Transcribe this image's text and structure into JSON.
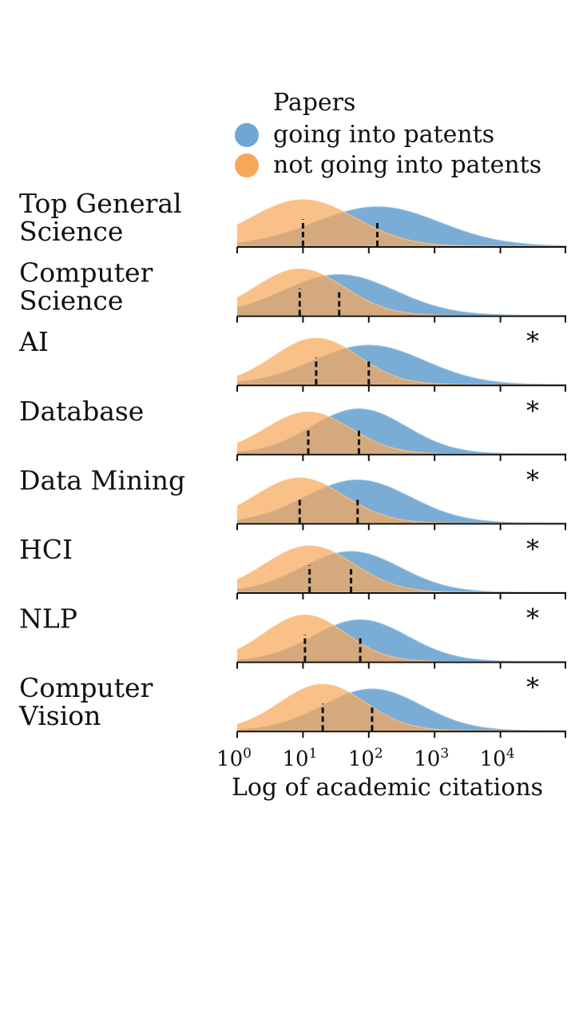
{
  "chart_data": {
    "type": "density-ridgeline",
    "xscale": "log10",
    "xlim_log10": [
      0,
      5
    ],
    "xlabel": "Log of academic citations",
    "xticks": [
      {
        "base": "10",
        "exp": "0"
      },
      {
        "base": "10",
        "exp": "1"
      },
      {
        "base": "10",
        "exp": "2"
      },
      {
        "base": "10",
        "exp": "3"
      },
      {
        "base": "10",
        "exp": "4"
      }
    ],
    "legend": {
      "title": "Papers",
      "placement": "top-right",
      "entries": [
        {
          "label": "going into patents",
          "color": "#6fa6d2"
        },
        {
          "label": "not going into patents",
          "color": "#f7a75a"
        }
      ]
    },
    "series_colors": {
      "patents": "#6fa6d2",
      "no_patents": "#f7a75a",
      "overlap": "#b38b5e",
      "median_line": "#111111"
    },
    "rows": [
      {
        "label": [
          "Top General",
          "Science"
        ],
        "star": "",
        "patents": {
          "median_log10": 2.13,
          "peak_log10": 2.13,
          "sd": 0.95,
          "height": 0.85
        },
        "no_patents": {
          "median_log10": 1.0,
          "peak_log10": 1.0,
          "sd": 0.8,
          "height": 1.0
        }
      },
      {
        "label": [
          "Computer",
          "Science"
        ],
        "star": "",
        "patents": {
          "median_log10": 1.55,
          "peak_log10": 1.55,
          "sd": 0.85,
          "height": 0.88
        },
        "no_patents": {
          "median_log10": 0.95,
          "peak_log10": 0.95,
          "sd": 0.68,
          "height": 1.0
        }
      },
      {
        "label": [
          "AI"
        ],
        "star": "*",
        "patents": {
          "median_log10": 2.0,
          "peak_log10": 2.0,
          "sd": 0.85,
          "height": 0.85
        },
        "no_patents": {
          "median_log10": 1.2,
          "peak_log10": 1.2,
          "sd": 0.65,
          "height": 1.0
        }
      },
      {
        "label": [
          "Database"
        ],
        "star": "*",
        "patents": {
          "median_log10": 1.85,
          "peak_log10": 1.85,
          "sd": 0.72,
          "height": 0.97
        },
        "no_patents": {
          "median_log10": 1.08,
          "peak_log10": 1.08,
          "sd": 0.65,
          "height": 0.9
        }
      },
      {
        "label": [
          "Data Mining"
        ],
        "star": "*",
        "patents": {
          "median_log10": 1.83,
          "peak_log10": 1.83,
          "sd": 0.8,
          "height": 0.93
        },
        "no_patents": {
          "median_log10": 0.95,
          "peak_log10": 0.95,
          "sd": 0.68,
          "height": 0.97
        }
      },
      {
        "label": [
          "HCI"
        ],
        "star": "*",
        "patents": {
          "median_log10": 1.73,
          "peak_log10": 1.73,
          "sd": 0.75,
          "height": 0.88
        },
        "no_patents": {
          "median_log10": 1.1,
          "peak_log10": 1.1,
          "sd": 0.68,
          "height": 1.0
        }
      },
      {
        "label": [
          "NLP"
        ],
        "star": "*",
        "patents": {
          "median_log10": 1.87,
          "peak_log10": 1.87,
          "sd": 0.72,
          "height": 0.9
        },
        "no_patents": {
          "median_log10": 1.03,
          "peak_log10": 1.03,
          "sd": 0.62,
          "height": 1.0
        }
      },
      {
        "label": [
          "Computer",
          "Vision"
        ],
        "star": "*",
        "patents": {
          "median_log10": 2.05,
          "peak_log10": 2.05,
          "sd": 0.75,
          "height": 0.9
        },
        "no_patents": {
          "median_log10": 1.3,
          "peak_log10": 1.3,
          "sd": 0.65,
          "height": 1.0
        }
      }
    ]
  }
}
